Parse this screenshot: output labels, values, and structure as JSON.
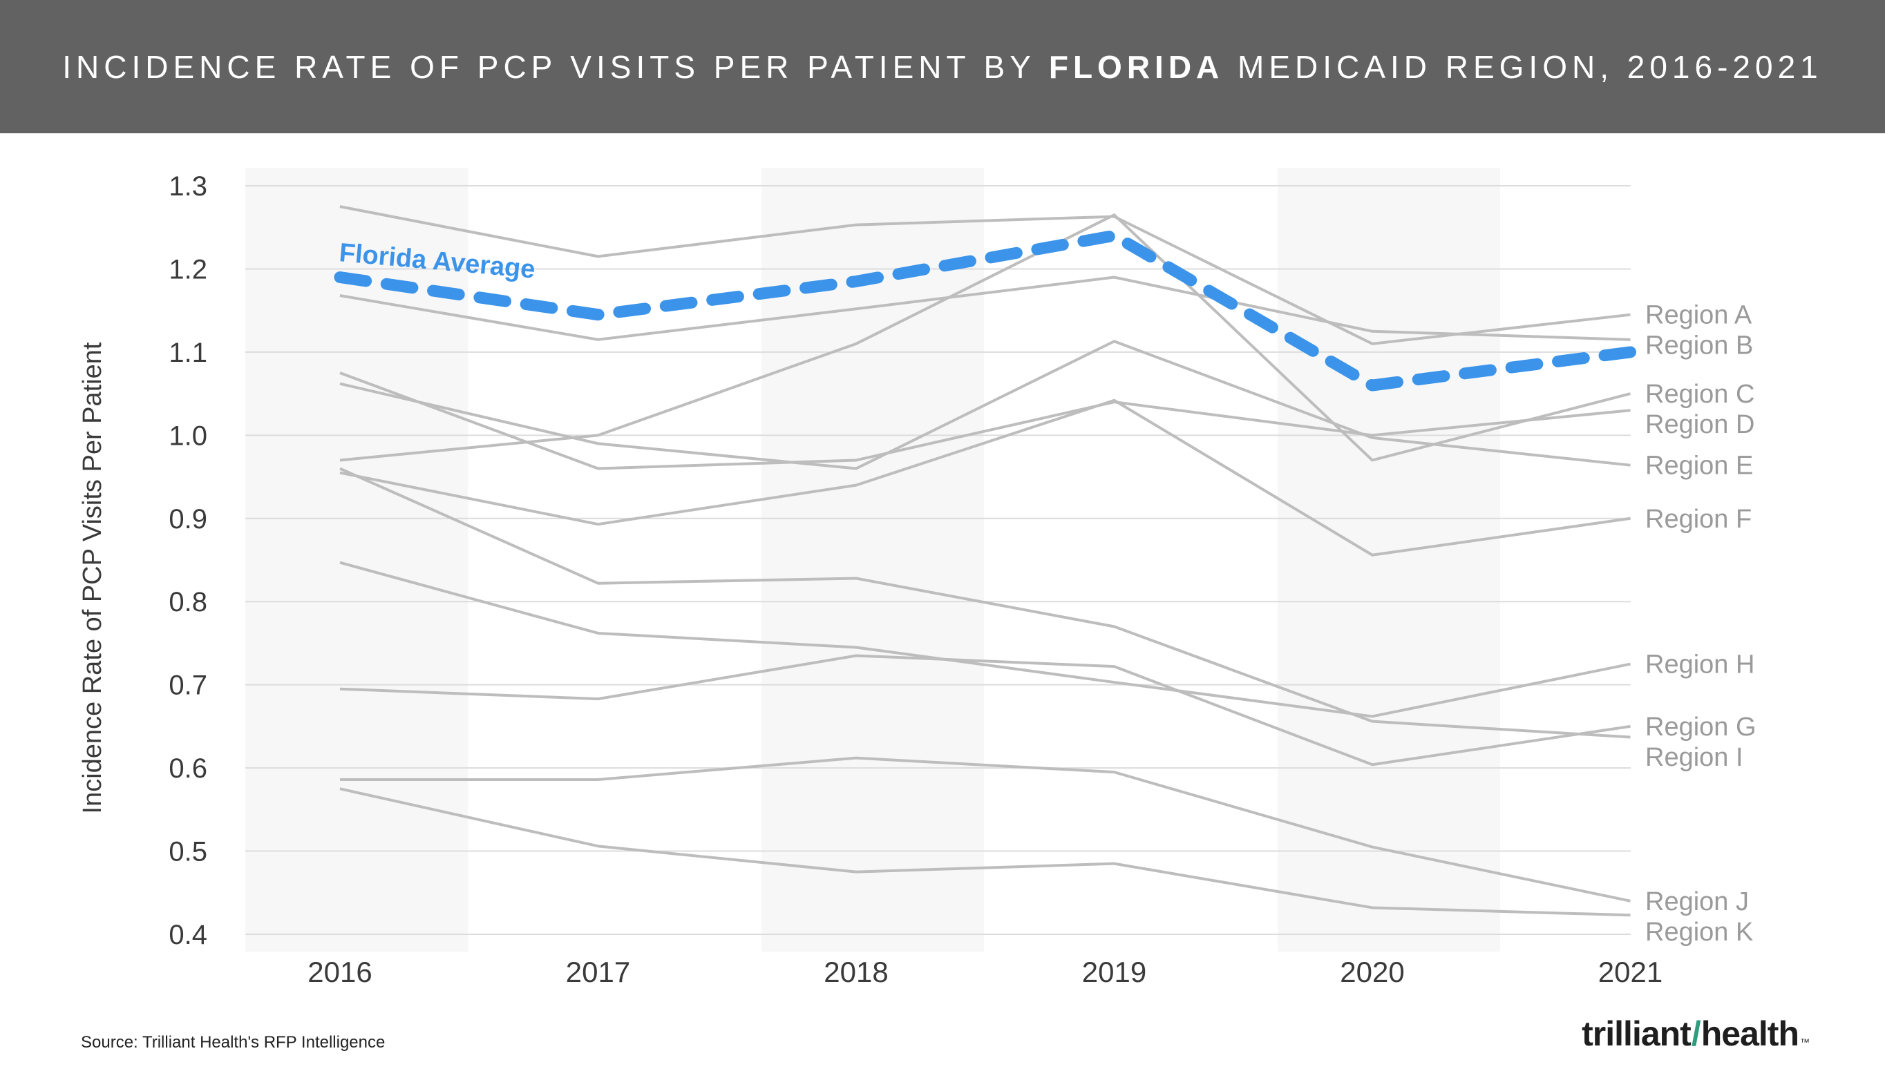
{
  "header": {
    "title_part1": "INCIDENCE RATE OF PCP VISITS PER PATIENT BY ",
    "title_bold": "FLORIDA",
    "title_part2": " MEDICAID REGION, 2016-2021"
  },
  "source": "Source: Trilliant Health's RFP Intelligence",
  "logo": {
    "part1": "trilliant",
    "slash": "/",
    "part2": "health",
    "tm": "™"
  },
  "colors": {
    "title_bg": "#626262",
    "region_line": "#bdbdbd",
    "average_line": "#3b94ea",
    "grid": "#dcdcdc",
    "band": "#f7f7f7",
    "axis_text": "#3a3a3a",
    "label_text": "#9a9a9a"
  },
  "chart_data": {
    "type": "line",
    "title": "INCIDENCE RATE OF PCP VISITS PER PATIENT BY FLORIDA MEDICAID REGION, 2016-2021",
    "xlabel": "",
    "ylabel": "Incidence Rate of PCP Visits Per Patient",
    "x": [
      "2016",
      "2017",
      "2018",
      "2019",
      "2020",
      "2021"
    ],
    "ylim": [
      0.4,
      1.3
    ],
    "yticks": [
      "1.3",
      "1.2",
      "1.1",
      "1.0",
      "0.9",
      "0.8",
      "0.7",
      "0.6",
      "0.5",
      "0.4"
    ],
    "grid": true,
    "average": {
      "name": "Florida Average",
      "values": [
        1.19,
        1.145,
        1.185,
        1.24,
        1.06,
        1.1
      ]
    },
    "series": [
      {
        "name": "Region A",
        "values": [
          1.275,
          1.215,
          1.253,
          1.263,
          1.11,
          1.145
        ]
      },
      {
        "name": "Region B",
        "values": [
          1.168,
          1.115,
          1.152,
          1.19,
          1.125,
          1.115
        ]
      },
      {
        "name": "Region C",
        "values": [
          0.97,
          1.0,
          1.11,
          1.265,
          0.97,
          1.05
        ]
      },
      {
        "name": "Region D",
        "values": [
          1.075,
          0.96,
          0.97,
          1.04,
          1.0,
          1.03
        ]
      },
      {
        "name": "Region E",
        "values": [
          1.062,
          0.99,
          0.96,
          1.113,
          0.997,
          0.964
        ]
      },
      {
        "name": "Region F",
        "values": [
          0.955,
          0.893,
          0.94,
          1.042,
          0.856,
          0.9
        ]
      },
      {
        "name": "Region G",
        "values": [
          0.695,
          0.683,
          0.735,
          0.722,
          0.604,
          0.65
        ]
      },
      {
        "name": "Region H",
        "values": [
          0.847,
          0.762,
          0.745,
          0.703,
          0.662,
          0.725
        ]
      },
      {
        "name": "Region I",
        "values": [
          0.96,
          0.822,
          0.828,
          0.77,
          0.656,
          0.637
        ]
      },
      {
        "name": "Region J",
        "values": [
          0.586,
          0.586,
          0.612,
          0.595,
          0.505,
          0.44
        ]
      },
      {
        "name": "Region K",
        "values": [
          0.575,
          0.506,
          0.475,
          0.485,
          0.432,
          0.423
        ]
      }
    ],
    "labels": [
      "Region A",
      "Region B",
      "Region C",
      "Region D",
      "Region E",
      "Region F",
      "Region G",
      "Region H",
      "Region I",
      "Region J",
      "Region K"
    ]
  }
}
